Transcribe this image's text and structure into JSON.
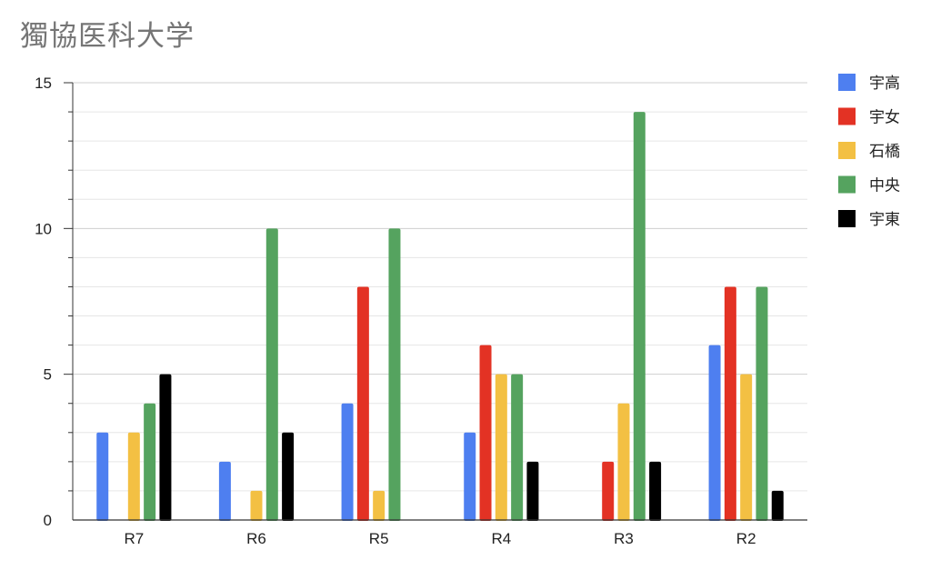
{
  "chart_data": {
    "type": "bar",
    "title": "獨協医科大学",
    "xlabel": "",
    "ylabel": "",
    "ylim": [
      0,
      15
    ],
    "yticks": [
      "0",
      "5",
      "10",
      "15"
    ],
    "categories": [
      "R7",
      "R6",
      "R5",
      "R4",
      "R3",
      "R2"
    ],
    "grid": true,
    "legend_position": "right",
    "series": [
      {
        "name": "宇高",
        "color": "#4e7ff0",
        "values": [
          3,
          2,
          4,
          3,
          0,
          6
        ]
      },
      {
        "name": "宇女",
        "color": "#e33224",
        "values": [
          0,
          0,
          8,
          6,
          2,
          8
        ]
      },
      {
        "name": "石橋",
        "color": "#f3c043",
        "values": [
          3,
          1,
          1,
          5,
          4,
          5
        ]
      },
      {
        "name": "中央",
        "color": "#55a35f",
        "values": [
          4,
          10,
          10,
          5,
          14,
          8
        ]
      },
      {
        "name": "宇東",
        "color": "#000000",
        "values": [
          5,
          3,
          0,
          2,
          2,
          1
        ]
      }
    ]
  }
}
